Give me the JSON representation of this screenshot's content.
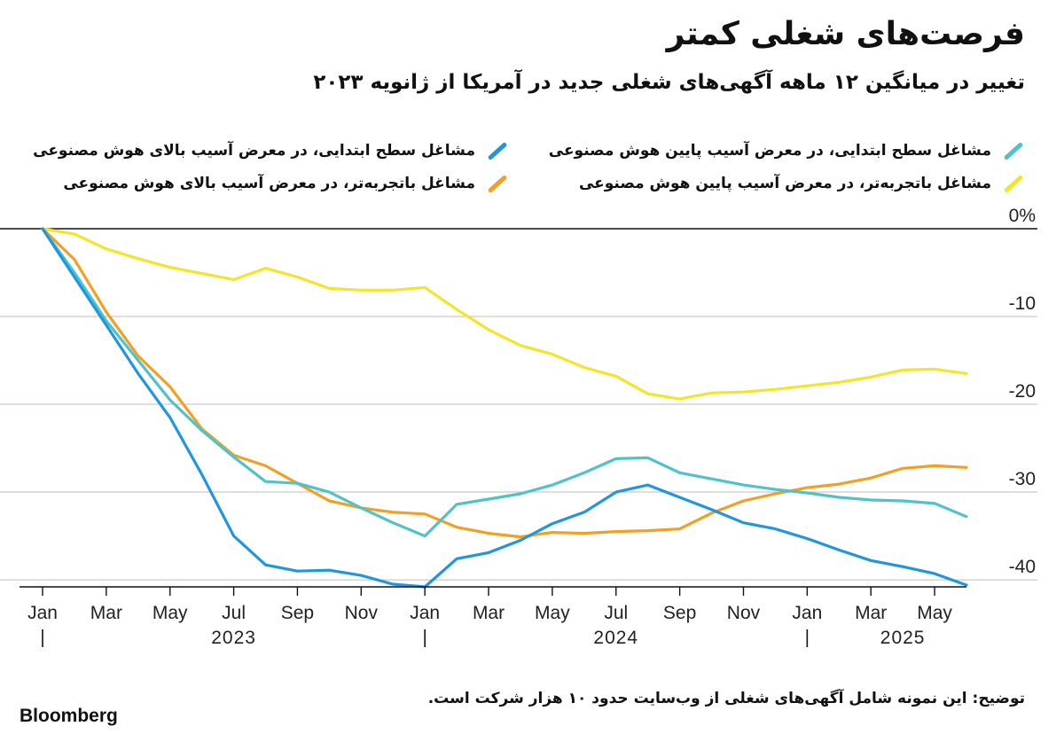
{
  "header": {
    "title": "فرصت‌های شغلی کمتر",
    "subtitle": "تغییر در میانگین ۱۲ ماهه آگهی‌های شغلی جدید در آمریکا از ژانویه ۲۰۲۳"
  },
  "footer": {
    "note": "توضیح: این نمونه شامل آگهی‌های شغلی از وب‌سایت حدود ۱۰ هزار شرکت است.",
    "brand": "Bloomberg"
  },
  "colors": {
    "entry_low": "#4fc3c8",
    "entry_high": "#2196e0",
    "exp_low": "#f2e52a",
    "exp_high": "#f2a024"
  },
  "chart_data": {
    "type": "line",
    "title": "فرصت‌های شغلی کمتر",
    "subtitle": "تغییر در میانگین ۱۲ ماهه آگهی‌های شغلی جدید در آمریکا از ژانویه ۲۰۲۳",
    "x": [
      "2023-01",
      "2023-02",
      "2023-03",
      "2023-04",
      "2023-05",
      "2023-06",
      "2023-07",
      "2023-08",
      "2023-09",
      "2023-10",
      "2023-11",
      "2023-12",
      "2024-01",
      "2024-02",
      "2024-03",
      "2024-04",
      "2024-05",
      "2024-06",
      "2024-07",
      "2024-08",
      "2024-09",
      "2024-10",
      "2024-11",
      "2024-12",
      "2025-01",
      "2025-02",
      "2025-03",
      "2025-04",
      "2025-05",
      "2025-06"
    ],
    "x_tick_labels": [
      "Jan",
      "Mar",
      "May",
      "Jul",
      "Sep",
      "Nov",
      "Jan",
      "Mar",
      "May",
      "Jul",
      "Sep",
      "Nov",
      "Jan",
      "Mar",
      "May"
    ],
    "x_ticks": [
      "2023-01",
      "2023-03",
      "2023-05",
      "2023-07",
      "2023-09",
      "2023-11",
      "2024-01",
      "2024-03",
      "2024-05",
      "2024-07",
      "2024-09",
      "2024-11",
      "2025-01",
      "2025-03",
      "2025-05"
    ],
    "years": [
      {
        "label": "2023",
        "center": "2023-07"
      },
      {
        "label": "2024",
        "center": "2024-07"
      },
      {
        "label": "2025",
        "center": "2025-04"
      }
    ],
    "year_separators": [
      "2023-01",
      "2024-01",
      "2025-01"
    ],
    "y_ticks": [
      0,
      -10,
      -20,
      -30,
      -40
    ],
    "y_tick_labels": [
      "0%",
      "-10",
      "-20",
      "-30",
      "-40"
    ],
    "ylim": [
      -40.8,
      0
    ],
    "grid": true,
    "legend_position": "top",
    "series": [
      {
        "name": "مشاغل سطح ابتدایی، در معرض آسیب پایین هوش مصنوعی",
        "color_key": "entry_low",
        "values": [
          0,
          -5,
          -10.5,
          -15,
          -19.5,
          -23,
          -26,
          -28.8,
          -29,
          -30,
          -31.8,
          -33.5,
          -35,
          -31.4,
          -30.8,
          -30.2,
          -29.2,
          -27.8,
          -26.2,
          -26.1,
          -27.8,
          -28.5,
          -29.2,
          -29.7,
          -30.1,
          -30.6,
          -30.9,
          -31,
          -31.3,
          -32.8
        ]
      },
      {
        "name": "مشاغل سطح ابتدایی، در معرض آسیب بالای هوش مصنوعی",
        "color_key": "entry_high",
        "values": [
          0,
          -5.5,
          -11,
          -16.5,
          -21.5,
          -28,
          -35,
          -38.3,
          -39,
          -38.9,
          -39.5,
          -40.5,
          -40.8,
          -37.6,
          -36.9,
          -35.5,
          -33.6,
          -32.3,
          -30,
          -29.2,
          -30.6,
          -32,
          -33.5,
          -34.2,
          -35.3,
          -36.6,
          -37.8,
          -38.5,
          -39.3,
          -40.6
        ]
      },
      {
        "name": "مشاغل باتجربه‌تر، در معرض آسیب پایین هوش مصنوعی",
        "color_key": "exp_low",
        "values": [
          0,
          -0.6,
          -2.3,
          -3.4,
          -4.4,
          -5.1,
          -5.8,
          -4.5,
          -5.5,
          -6.8,
          -7,
          -7,
          -6.7,
          -9.2,
          -11.5,
          -13.3,
          -14.3,
          -15.8,
          -16.8,
          -18.8,
          -19.4,
          -18.7,
          -18.6,
          -18.3,
          -17.9,
          -17.5,
          -16.9,
          -16.1,
          -16,
          -16.5
        ]
      },
      {
        "name": "مشاغل باتجربه‌تر، در معرض آسیب بالای هوش مصنوعی",
        "color_key": "exp_high",
        "values": [
          0,
          -3.5,
          -9.5,
          -14.5,
          -18,
          -22.8,
          -25.8,
          -27,
          -29,
          -31,
          -31.8,
          -32.3,
          -32.5,
          -34,
          -34.7,
          -35.1,
          -34.6,
          -34.7,
          -34.5,
          -34.4,
          -34.2,
          -32.4,
          -31,
          -30.2,
          -29.5,
          -29.1,
          -28.4,
          -27.3,
          -27,
          -27.2
        ]
      }
    ]
  }
}
